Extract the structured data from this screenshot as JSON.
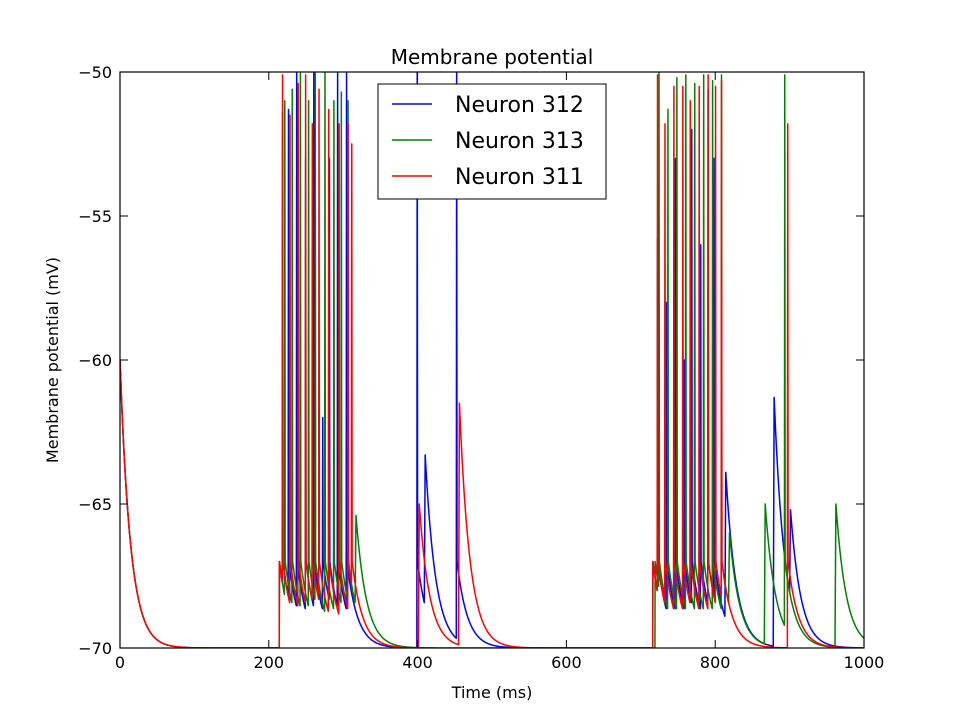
{
  "chart_data": {
    "type": "line",
    "title": "Membrane potential",
    "xlabel": "Time (ms)",
    "ylabel": "Membrane potential (mV)",
    "xlim": [
      0,
      1000
    ],
    "ylim": [
      -70,
      -50
    ],
    "xticks": [
      0,
      200,
      400,
      600,
      800,
      1000
    ],
    "xtick_labels": [
      "0",
      "200",
      "400",
      "600",
      "800",
      "1000"
    ],
    "yticks": [
      -70,
      -65,
      -60,
      -55,
      -50
    ],
    "ytick_labels": [
      "−70",
      "−65",
      "−60",
      "−55",
      "−50"
    ],
    "grid": false,
    "legend_position": "top-center",
    "baseline": -70,
    "reset": -67,
    "tau_ms": 14,
    "series": [
      {
        "name": "Neuron 312",
        "color": "#0000ff",
        "events": [
          {
            "t": 0,
            "v": -60
          },
          {
            "t": 214,
            "v": -67,
            "kind": "step"
          },
          {
            "t": 218,
            "v": -51.4,
            "kind": "spike"
          },
          {
            "t": 226,
            "v": -51.3,
            "kind": "spike"
          },
          {
            "t": 237,
            "v": -50,
            "kind": "spike"
          },
          {
            "t": 249,
            "v": -53,
            "kind": "spike"
          },
          {
            "t": 260,
            "v": -50,
            "kind": "spike"
          },
          {
            "t": 272,
            "v": -62,
            "kind": "spike"
          },
          {
            "t": 281,
            "v": -53,
            "kind": "spike"
          },
          {
            "t": 292,
            "v": -50,
            "kind": "spike"
          },
          {
            "t": 304,
            "v": -50,
            "kind": "spike"
          },
          {
            "t": 399,
            "v": -50,
            "kind": "spike"
          },
          {
            "t": 409,
            "v": -63.3,
            "kind": "bump"
          },
          {
            "t": 452,
            "v": -50,
            "kind": "spike"
          },
          {
            "t": 716,
            "v": -67,
            "kind": "step"
          },
          {
            "t": 722,
            "v": -55.8,
            "kind": "spike"
          },
          {
            "t": 734,
            "v": -58,
            "kind": "spike"
          },
          {
            "t": 746,
            "v": -53,
            "kind": "spike"
          },
          {
            "t": 758,
            "v": -60,
            "kind": "spike"
          },
          {
            "t": 768,
            "v": -52,
            "kind": "spike"
          },
          {
            "t": 780,
            "v": -56,
            "kind": "spike"
          },
          {
            "t": 790,
            "v": -50.6,
            "kind": "spike"
          },
          {
            "t": 798,
            "v": -53,
            "kind": "spike"
          },
          {
            "t": 813,
            "v": -63.9,
            "kind": "bump"
          },
          {
            "t": 878,
            "v": -61.3,
            "kind": "bump"
          },
          {
            "t": 900,
            "v": -65.2,
            "kind": "bump"
          }
        ]
      },
      {
        "name": "Neuron 313",
        "color": "#008000",
        "events": [
          {
            "t": 0,
            "v": -60
          },
          {
            "t": 214,
            "v": -67,
            "kind": "step"
          },
          {
            "t": 221,
            "v": -51,
            "kind": "spike"
          },
          {
            "t": 231,
            "v": -50.6,
            "kind": "spike"
          },
          {
            "t": 242,
            "v": -50,
            "kind": "spike"
          },
          {
            "t": 253,
            "v": -51,
            "kind": "spike"
          },
          {
            "t": 262,
            "v": -50,
            "kind": "spike"
          },
          {
            "t": 275,
            "v": -50,
            "kind": "spike"
          },
          {
            "t": 287,
            "v": -51,
            "kind": "spike"
          },
          {
            "t": 297,
            "v": -50.7,
            "kind": "spike"
          },
          {
            "t": 306,
            "v": -51,
            "kind": "spike"
          },
          {
            "t": 316,
            "v": -65.4,
            "kind": "bump"
          },
          {
            "t": 719,
            "v": -67,
            "kind": "step"
          },
          {
            "t": 724,
            "v": -50,
            "kind": "spike"
          },
          {
            "t": 736,
            "v": -51.3,
            "kind": "spike"
          },
          {
            "t": 748,
            "v": -50.2,
            "kind": "spike"
          },
          {
            "t": 760,
            "v": -50.1,
            "kind": "spike"
          },
          {
            "t": 772,
            "v": -50.4,
            "kind": "spike"
          },
          {
            "t": 784,
            "v": -50.1,
            "kind": "spike"
          },
          {
            "t": 796,
            "v": -50.3,
            "kind": "spike"
          },
          {
            "t": 808,
            "v": -50.1,
            "kind": "spike"
          },
          {
            "t": 818,
            "v": -66,
            "kind": "bump"
          },
          {
            "t": 866,
            "v": -65,
            "kind": "bump"
          },
          {
            "t": 893,
            "v": -50.1,
            "kind": "spike"
          },
          {
            "t": 961,
            "v": -65,
            "kind": "bump"
          }
        ]
      },
      {
        "name": "Neuron 311",
        "color": "#ff0000",
        "events": [
          {
            "t": 0,
            "v": -60
          },
          {
            "t": 214,
            "v": -67,
            "kind": "step"
          },
          {
            "t": 218,
            "v": -50.1,
            "kind": "spike"
          },
          {
            "t": 228,
            "v": -51.5,
            "kind": "spike"
          },
          {
            "t": 239,
            "v": -50.4,
            "kind": "spike"
          },
          {
            "t": 249,
            "v": -50.1,
            "kind": "spike"
          },
          {
            "t": 258,
            "v": -51.8,
            "kind": "spike"
          },
          {
            "t": 267,
            "v": -50.6,
            "kind": "spike"
          },
          {
            "t": 280,
            "v": -51.3,
            "kind": "spike"
          },
          {
            "t": 294,
            "v": -51.8,
            "kind": "spike"
          },
          {
            "t": 306,
            "v": -51.8,
            "kind": "spike"
          },
          {
            "t": 311,
            "v": -52.5,
            "kind": "spike"
          },
          {
            "t": 401,
            "v": -65,
            "kind": "bump"
          },
          {
            "t": 455,
            "v": -61.5,
            "kind": "bump"
          },
          {
            "t": 716,
            "v": -67,
            "kind": "step"
          },
          {
            "t": 722,
            "v": -50.1,
            "kind": "spike"
          },
          {
            "t": 732,
            "v": -51.8,
            "kind": "spike"
          },
          {
            "t": 744,
            "v": -50.5,
            "kind": "spike"
          },
          {
            "t": 756,
            "v": -50.5,
            "kind": "spike"
          },
          {
            "t": 766,
            "v": -51,
            "kind": "spike"
          },
          {
            "t": 778,
            "v": -50.5,
            "kind": "spike"
          },
          {
            "t": 790,
            "v": -50.1,
            "kind": "spike"
          },
          {
            "t": 800,
            "v": -50.5,
            "kind": "spike"
          },
          {
            "t": 808,
            "v": -50.3,
            "kind": "spike"
          },
          {
            "t": 897,
            "v": -51.8,
            "kind": "spike"
          }
        ]
      }
    ]
  }
}
